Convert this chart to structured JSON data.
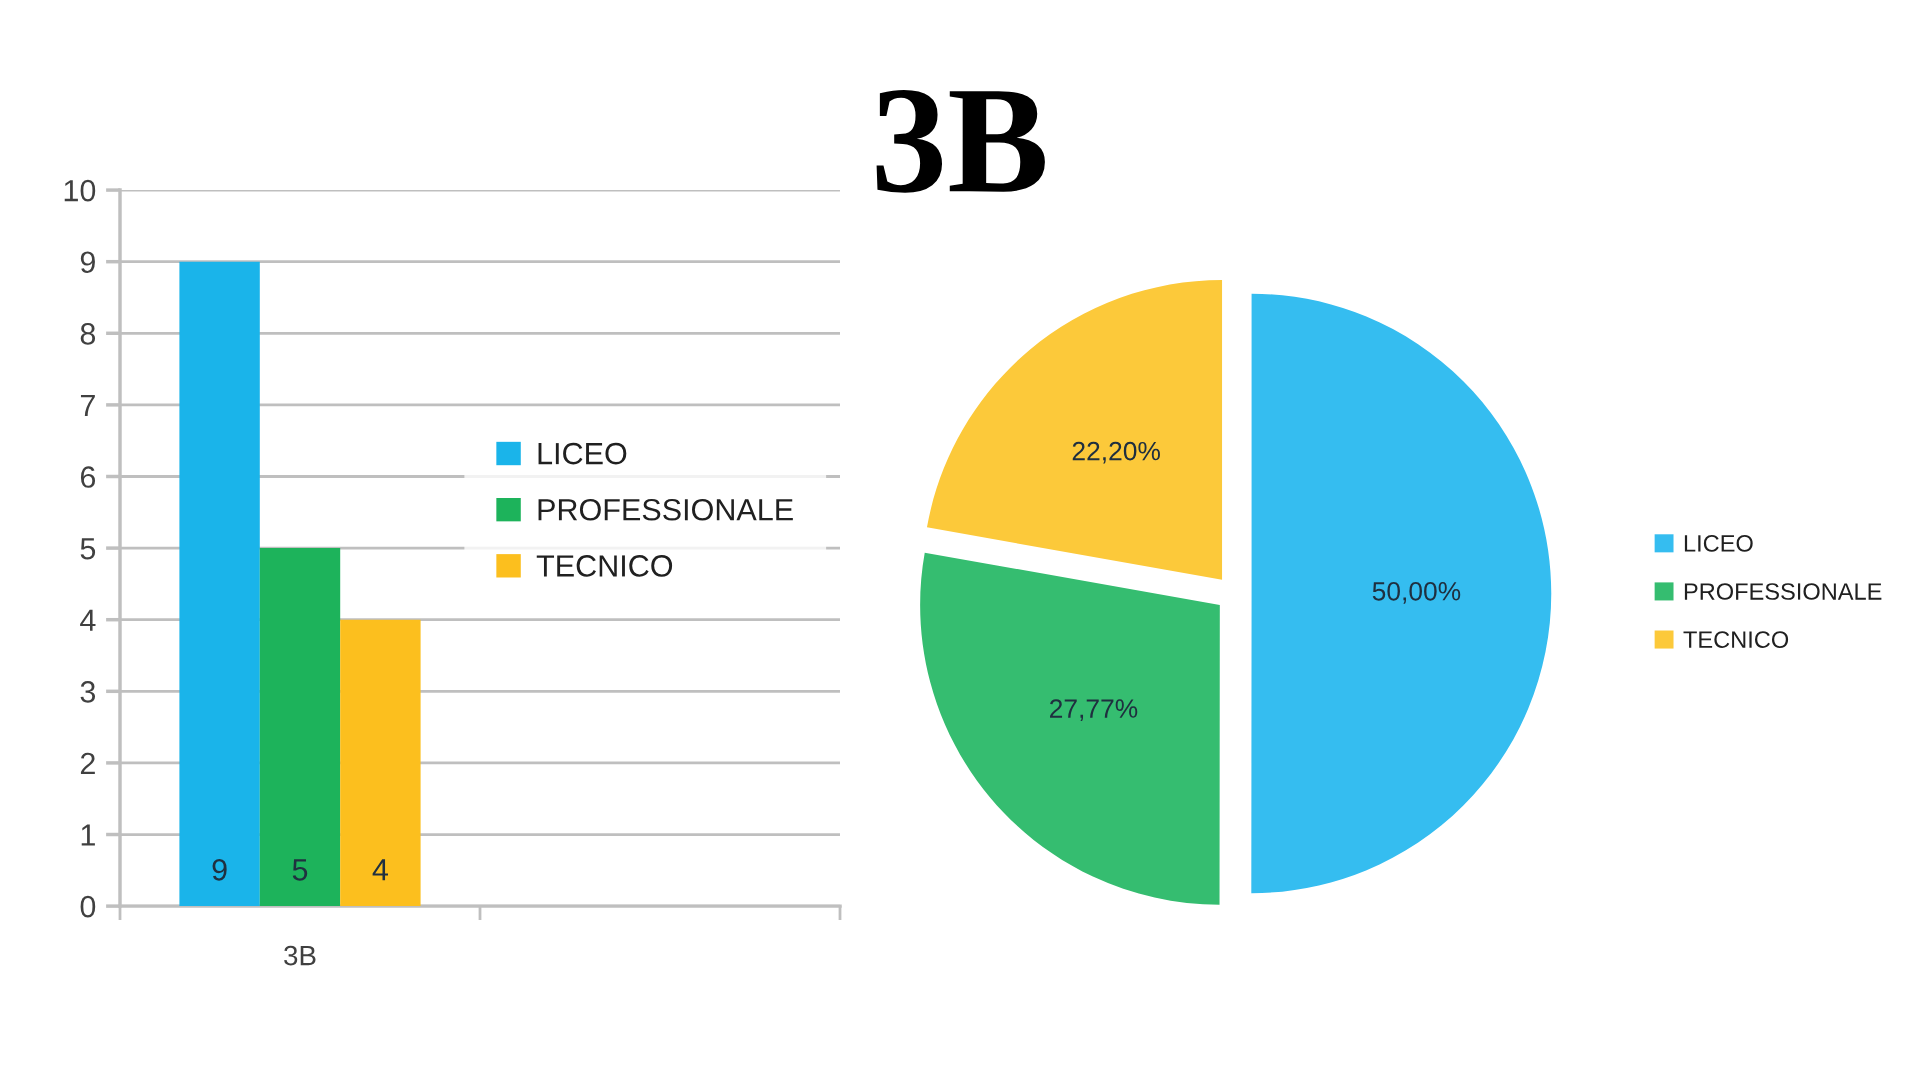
{
  "chart_data": [
    {
      "type": "bar",
      "title": "3B",
      "categories": [
        "3B",
        null
      ],
      "series": [
        {
          "name": "LICEO",
          "color": "#1ab4ea",
          "values": [
            9,
            null
          ]
        },
        {
          "name": "PROFESSIONALE",
          "color": "#1db35b",
          "values": [
            5,
            null
          ]
        },
        {
          "name": "TECNICO",
          "color": "#fcbf1e",
          "values": [
            4,
            null
          ]
        }
      ],
      "ylim": [
        0,
        10
      ],
      "yticks": [
        0,
        1,
        2,
        3,
        4,
        5,
        6,
        7,
        8,
        9,
        10
      ],
      "grid": "y",
      "legend": "right",
      "data_labels": true
    },
    {
      "type": "pie",
      "categories": [
        "LICEO",
        "PROFESSIONALE",
        "TECNICO"
      ],
      "values": [
        50.0,
        27.77,
        22.2
      ],
      "value_labels": [
        "50,00%",
        "27,77%",
        "22,20%"
      ],
      "colors": [
        "#35bdf0",
        "#35bd70",
        "#fcc93a"
      ],
      "legend": "right"
    }
  ]
}
